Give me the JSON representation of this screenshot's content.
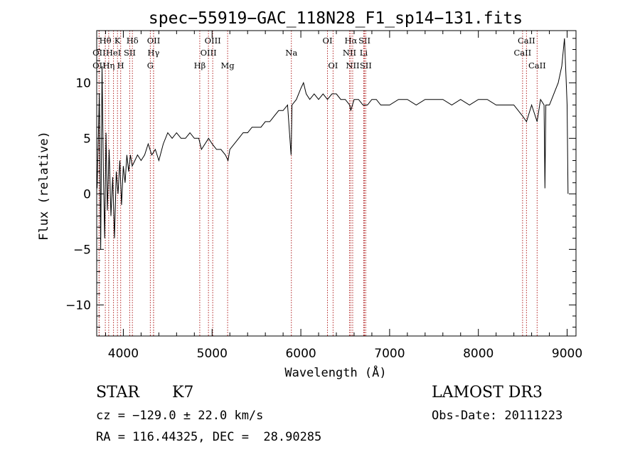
{
  "chart_data": {
    "type": "line",
    "title": "spec−55919−GAC_118N28_F1_sp14−131.fits",
    "xlabel": "Wavelength (Å)",
    "ylabel": "Flux (relative)",
    "xlim": [
      3700,
      9100
    ],
    "ylim": [
      -12.8,
      14.7
    ],
    "xticks": [
      4000,
      5000,
      6000,
      7000,
      8000,
      9000
    ],
    "xtick_labels": [
      "4000",
      "5000",
      "6000",
      "7000",
      "8000",
      "9000"
    ],
    "yticks": [
      -10,
      -5,
      0,
      5,
      10
    ],
    "ytick_labels": [
      "−10",
      "−5",
      "0",
      "5",
      "10"
    ],
    "grid": false,
    "line_color": "#000000",
    "marker_color": "#b22222",
    "series": [
      {
        "name": "spectrum",
        "x": [
          3705,
          3730,
          3745,
          3760,
          3775,
          3790,
          3805,
          3820,
          3840,
          3860,
          3880,
          3900,
          3920,
          3940,
          3960,
          3980,
          4000,
          4020,
          4040,
          4060,
          4080,
          4100,
          4130,
          4160,
          4200,
          4240,
          4280,
          4320,
          4360,
          4400,
          4450,
          4500,
          4550,
          4600,
          4650,
          4700,
          4750,
          4800,
          4850,
          4880,
          4920,
          4960,
          5000,
          5050,
          5100,
          5150,
          5180,
          5200,
          5250,
          5300,
          5350,
          5400,
          5450,
          5500,
          5550,
          5600,
          5650,
          5700,
          5750,
          5800,
          5850,
          5890,
          5893,
          5900,
          5950,
          6000,
          6030,
          6060,
          6100,
          6150,
          6200,
          6250,
          6300,
          6350,
          6400,
          6450,
          6500,
          6550,
          6563,
          6600,
          6650,
          6700,
          6750,
          6800,
          6850,
          6900,
          6950,
          7000,
          7100,
          7200,
          7300,
          7400,
          7500,
          7600,
          7700,
          7800,
          7900,
          8000,
          8100,
          8200,
          8300,
          8400,
          8498,
          8542,
          8600,
          8662,
          8700,
          8740,
          8750,
          8760,
          8800,
          8850,
          8900,
          8940,
          8970,
          8990,
          9000,
          9010
        ],
        "values": [
          0.5,
          9.0,
          -5.0,
          11.5,
          2.0,
          -4.0,
          5.5,
          -1.5,
          4.0,
          -2.0,
          1.5,
          -4.0,
          2.0,
          0.0,
          3.0,
          -1.0,
          2.5,
          1.0,
          3.5,
          2.0,
          3.5,
          2.5,
          3.0,
          3.5,
          3.0,
          3.5,
          4.5,
          3.5,
          4.0,
          3.0,
          4.5,
          5.5,
          5.0,
          5.5,
          5.0,
          5.0,
          5.5,
          5.0,
          5.0,
          4.0,
          4.5,
          5.0,
          4.5,
          4.0,
          4.0,
          3.5,
          3.0,
          4.0,
          4.5,
          5.0,
          5.5,
          5.5,
          6.0,
          6.0,
          6.0,
          6.5,
          6.5,
          7.0,
          7.5,
          7.5,
          8.0,
          3.5,
          4.5,
          8.0,
          8.5,
          9.5,
          10.0,
          9.0,
          8.5,
          9.0,
          8.5,
          9.0,
          8.5,
          9.0,
          9.0,
          8.5,
          8.5,
          8.0,
          7.5,
          8.5,
          8.5,
          8.0,
          8.0,
          8.5,
          8.5,
          8.0,
          8.0,
          8.0,
          8.5,
          8.5,
          8.0,
          8.5,
          8.5,
          8.5,
          8.0,
          8.5,
          8.0,
          8.5,
          8.5,
          8.0,
          8.0,
          8.0,
          7.0,
          6.5,
          8.0,
          6.5,
          8.5,
          8.0,
          0.5,
          8.0,
          8.0,
          9.0,
          10.0,
          11.5,
          14.0,
          10.0,
          8.0,
          0.0
        ]
      }
    ],
    "line_markers": [
      {
        "label": "Hθ",
        "x": 3797,
        "row": 1
      },
      {
        "label": "K",
        "x": 3934,
        "row": 1
      },
      {
        "label": "Hδ",
        "x": 4102,
        "row": 1
      },
      {
        "label": "OII",
        "x": 4341,
        "row": 1
      },
      {
        "label": "OIII",
        "x": 5007,
        "row": 1
      },
      {
        "label": "OI",
        "x": 6300,
        "row": 1
      },
      {
        "label": "Hα",
        "x": 6563,
        "row": 1
      },
      {
        "label": "SII",
        "x": 6717,
        "row": 1
      },
      {
        "label": "CaII",
        "x": 8542,
        "row": 1
      },
      {
        "label": "OII",
        "x": 3727,
        "row": 2
      },
      {
        "label": "HeI",
        "x": 3889,
        "row": 2
      },
      {
        "label": "SII",
        "x": 4072,
        "row": 2
      },
      {
        "label": "Hγ",
        "x": 4340,
        "row": 2
      },
      {
        "label": "OIII",
        "x": 4959,
        "row": 2
      },
      {
        "label": "Na",
        "x": 5893,
        "row": 2
      },
      {
        "label": "NII",
        "x": 6548,
        "row": 2
      },
      {
        "label": "Li",
        "x": 6708,
        "row": 2
      },
      {
        "label": "CaII",
        "x": 8498,
        "row": 2
      },
      {
        "label": "OII",
        "x": 3727,
        "row": 3
      },
      {
        "label": "Hη",
        "x": 3835,
        "row": 3
      },
      {
        "label": "H",
        "x": 3970,
        "row": 3
      },
      {
        "label": "G",
        "x": 4304,
        "row": 3
      },
      {
        "label": "Hβ",
        "x": 4861,
        "row": 3
      },
      {
        "label": "Mg",
        "x": 5175,
        "row": 3
      },
      {
        "label": "OI",
        "x": 6363,
        "row": 3
      },
      {
        "label": "NII",
        "x": 6584,
        "row": 3
      },
      {
        "label": "SII",
        "x": 6731,
        "row": 3
      },
      {
        "label": "CaII",
        "x": 8662,
        "row": 3
      }
    ]
  },
  "info": {
    "object_class": "STAR",
    "subclass": "K7",
    "survey": "LAMOST DR3",
    "cz": "cz = −129.0 ± 22.0 km/s",
    "obs_date": "Obs-Date: 20111223",
    "coords": "RA = 116.44325, DEC =  28.90285"
  }
}
